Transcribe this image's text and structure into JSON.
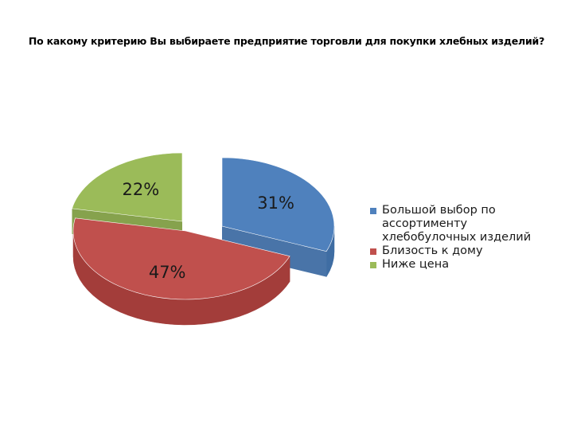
{
  "chart_data": {
    "type": "pie",
    "title": "По какому критерию Вы выбираете предприятие торговли для покупки хлебных изделий?",
    "legend_position": "right",
    "slices": [
      {
        "label": "Большой выбор по ассортименту хлебобулочных изделий",
        "value": 31,
        "value_label": "31%",
        "color": "#4F81BD",
        "side_color": "#3F6DA3"
      },
      {
        "label": "Близость к дому",
        "value": 47,
        "value_label": "47%",
        "color": "#C0504D",
        "side_color": "#A33D3A"
      },
      {
        "label": "Ниже цена",
        "value": 22,
        "value_label": "22%",
        "color": "#9BBB59",
        "side_color": "#7F9D43"
      }
    ]
  }
}
